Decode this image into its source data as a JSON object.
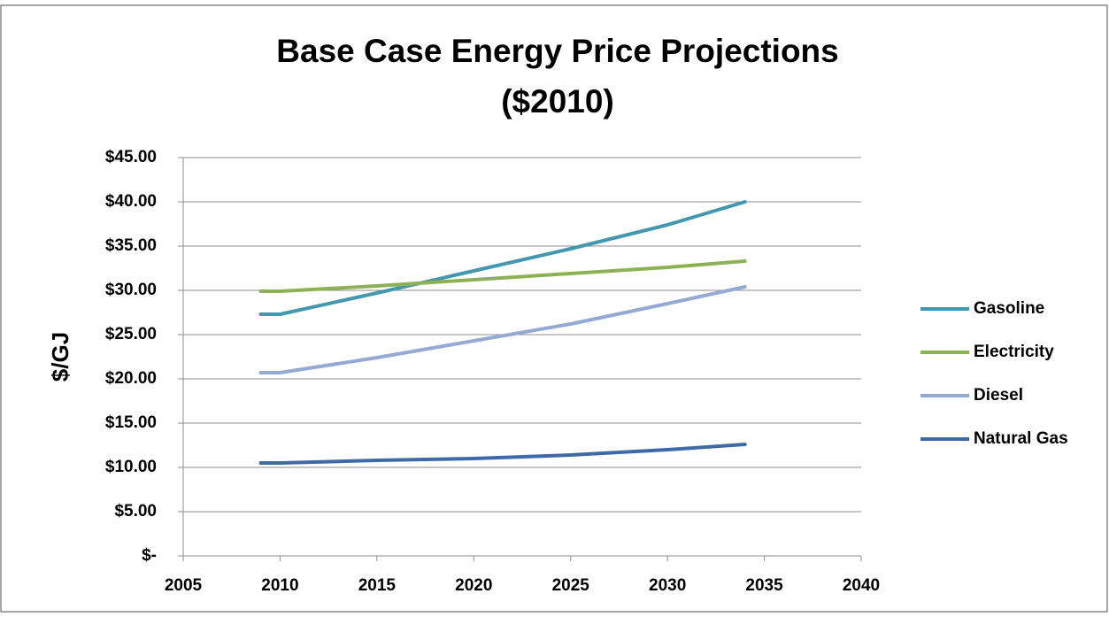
{
  "chart_data": {
    "type": "line",
    "title": [
      "Base Case Energy Price Projections",
      "($2010)"
    ],
    "y_label": "$/GJ",
    "x": [
      2009,
      2010,
      2015,
      2020,
      2025,
      2030,
      2034
    ],
    "series": [
      {
        "name": "Gasoline",
        "color": "#4198af",
        "values": [
          27.3,
          27.3,
          29.7,
          32.2,
          34.7,
          37.4,
          40.0
        ]
      },
      {
        "name": "Electricity",
        "color": "#8db255",
        "values": [
          29.9,
          29.9,
          30.5,
          31.2,
          31.9,
          32.6,
          33.3
        ]
      },
      {
        "name": "Diesel",
        "color": "#95aad3",
        "values": [
          20.7,
          20.7,
          22.4,
          24.3,
          26.2,
          28.5,
          30.4
        ]
      },
      {
        "name": "Natural Gas",
        "color": "#3e6ba8",
        "values": [
          10.5,
          10.5,
          10.8,
          11.0,
          11.4,
          12.0,
          12.6
        ]
      }
    ],
    "xlim": [
      2005,
      2040
    ],
    "xticks": [
      2005,
      2010,
      2015,
      2020,
      2025,
      2030,
      2035,
      2040
    ],
    "ylim": [
      0,
      45
    ],
    "yticks": [
      {
        "value": 0,
        "label": "$-"
      },
      {
        "value": 5,
        "label": "$5.00"
      },
      {
        "value": 10,
        "label": "$10.00"
      },
      {
        "value": 15,
        "label": "$15.00"
      },
      {
        "value": 20,
        "label": "$20.00"
      },
      {
        "value": 25,
        "label": "$25.00"
      },
      {
        "value": 30,
        "label": "$30.00"
      },
      {
        "value": 35,
        "label": "$35.00"
      },
      {
        "value": 40,
        "label": "$40.00"
      },
      {
        "value": 45,
        "label": "$45.00"
      }
    ],
    "grid": true,
    "legend": "right"
  }
}
